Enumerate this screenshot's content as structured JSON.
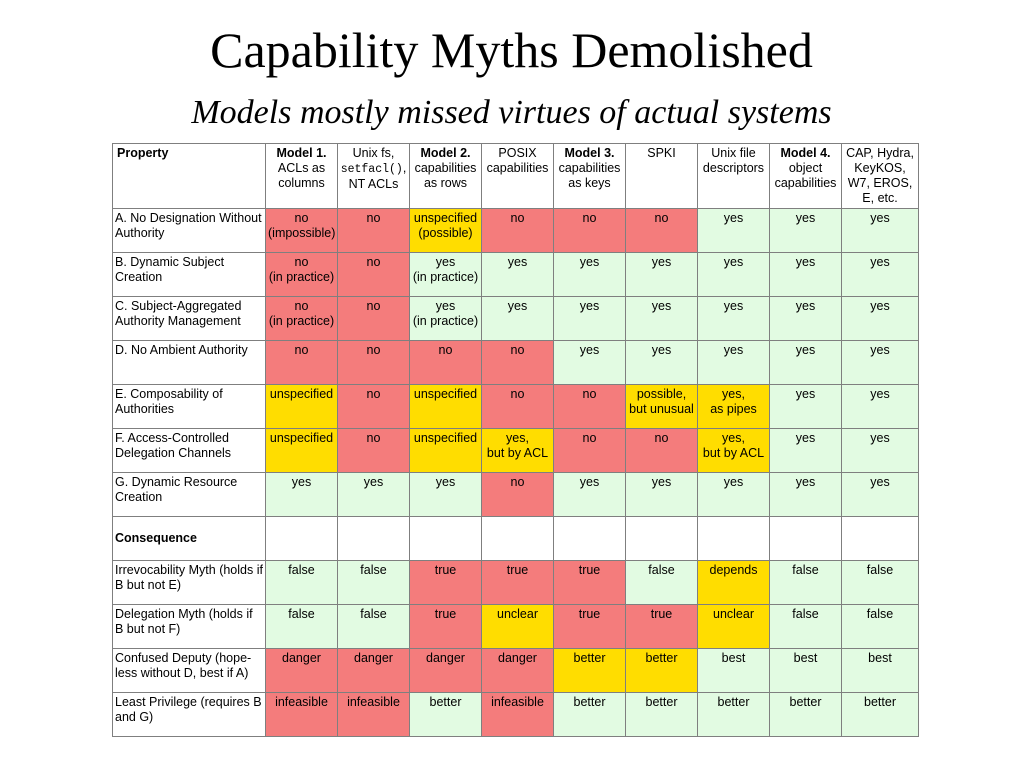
{
  "slide": {
    "title": "Capability Myths Demolished",
    "subtitle": "Models mostly missed virtues of actual systems"
  },
  "colors": {
    "red": "#f47c7c",
    "green": "#e2fbe2",
    "yellow": "#ffdd00"
  },
  "header": {
    "property": "Property",
    "model1_bold": "Model 1.",
    "model1_rest": "ACLs as columns",
    "unixfs_a": "Unix fs,",
    "unixfs_code": "setfacl()",
    "unixfs_comma": ",",
    "unixfs_b": "NT ACLs",
    "model2_bold": "Model 2.",
    "model2_rest": "capabilities as rows",
    "posix": "POSIX capabilities",
    "model3_bold": "Model 3.",
    "model3_rest": "capabilities as keys",
    "spki": "SPKI",
    "unixfd": "Unix file descriptors",
    "model4_bold": "Model 4.",
    "model4_rest": "object capabilities",
    "cap": "CAP, Hydra, KeyKOS, W7, EROS, E, etc."
  },
  "properties": [
    {
      "label": "A. No Designation Without Authority",
      "cells": [
        "no\n(impossible)",
        "no",
        "unspecified\n(possible)",
        "no",
        "no",
        "no",
        "yes",
        "yes",
        "yes"
      ],
      "colors": [
        "red",
        "red",
        "yellow",
        "red",
        "red",
        "red",
        "green",
        "green",
        "green"
      ]
    },
    {
      "label": "B. Dynamic Subject Creation",
      "cells": [
        "no\n(in practice)",
        "no",
        "yes\n(in practice)",
        "yes",
        "yes",
        "yes",
        "yes",
        "yes",
        "yes"
      ],
      "colors": [
        "red",
        "red",
        "green",
        "green",
        "green",
        "green",
        "green",
        "green",
        "green"
      ]
    },
    {
      "label": "C. Subject-Aggregated Authority Management",
      "cells": [
        "no\n(in practice)",
        "no",
        "yes\n(in practice)",
        "yes",
        "yes",
        "yes",
        "yes",
        "yes",
        "yes"
      ],
      "colors": [
        "red",
        "red",
        "green",
        "green",
        "green",
        "green",
        "green",
        "green",
        "green"
      ]
    },
    {
      "label": "D. No Ambient Authority",
      "cells": [
        "no",
        "no",
        "no",
        "no",
        "yes",
        "yes",
        "yes",
        "yes",
        "yes"
      ],
      "colors": [
        "red",
        "red",
        "red",
        "red",
        "green",
        "green",
        "green",
        "green",
        "green"
      ]
    },
    {
      "label": "E. Composability of Authorities",
      "cells": [
        "unspecified",
        "no",
        "unspecified",
        "no",
        "no",
        "possible,\nbut unusual",
        "yes,\nas pipes",
        "yes",
        "yes"
      ],
      "colors": [
        "yellow",
        "red",
        "yellow",
        "red",
        "red",
        "yellow",
        "yellow",
        "green",
        "green"
      ]
    },
    {
      "label": "F. Access-Controlled Delegation Channels",
      "cells": [
        "unspecified",
        "no",
        "unspecified",
        "yes,\nbut by ACL",
        "no",
        "no",
        "yes,\nbut by ACL",
        "yes",
        "yes"
      ],
      "colors": [
        "yellow",
        "red",
        "yellow",
        "yellow",
        "red",
        "red",
        "yellow",
        "green",
        "green"
      ]
    },
    {
      "label": "G. Dynamic Resource Creation",
      "cells": [
        "yes",
        "yes",
        "yes",
        "no",
        "yes",
        "yes",
        "yes",
        "yes",
        "yes"
      ],
      "colors": [
        "green",
        "green",
        "green",
        "red",
        "green",
        "green",
        "green",
        "green",
        "green"
      ]
    }
  ],
  "consequence_label": "Consequence",
  "consequences": [
    {
      "label": "Irrevocability Myth (holds if B but not E)",
      "cells": [
        "false",
        "false",
        "true",
        "true",
        "true",
        "false",
        "depends",
        "false",
        "false"
      ],
      "colors": [
        "green",
        "green",
        "red",
        "red",
        "red",
        "green",
        "yellow",
        "green",
        "green"
      ]
    },
    {
      "label": "Delegation Myth (holds if B but not F)",
      "cells": [
        "false",
        "false",
        "true",
        "unclear",
        "true",
        "true",
        "unclear",
        "false",
        "false"
      ],
      "colors": [
        "green",
        "green",
        "red",
        "yellow",
        "red",
        "red",
        "yellow",
        "green",
        "green"
      ]
    },
    {
      "label": "Confused Deputy (hope-less without D, best if A)",
      "cells": [
        "danger",
        "danger",
        "danger",
        "danger",
        "better",
        "better",
        "best",
        "best",
        "best"
      ],
      "colors": [
        "red",
        "red",
        "red",
        "red",
        "yellow",
        "yellow",
        "green",
        "green",
        "green"
      ]
    },
    {
      "label": "Least Privilege (requires B and G)",
      "cells": [
        "infeasible",
        "infeasible",
        "better",
        "infeasible",
        "better",
        "better",
        "better",
        "better",
        "better"
      ],
      "colors": [
        "red",
        "red",
        "green",
        "red",
        "green",
        "green",
        "green",
        "green",
        "green"
      ]
    }
  ]
}
